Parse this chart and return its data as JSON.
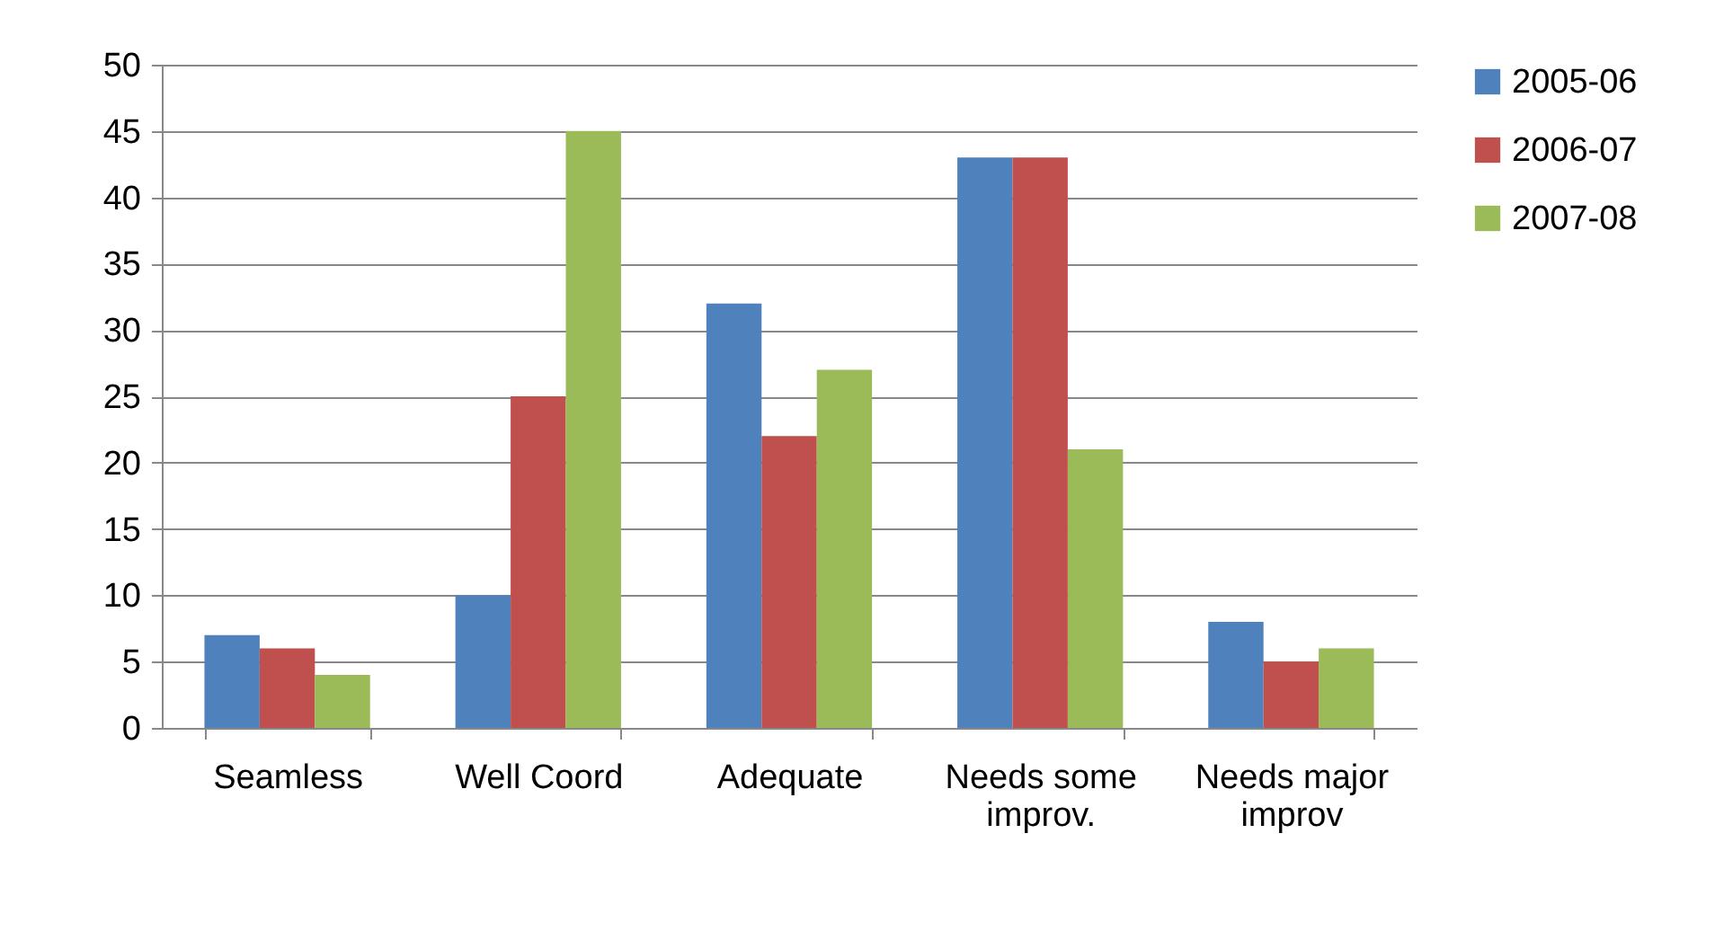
{
  "chart_data": {
    "type": "bar",
    "categories": [
      "Seamless",
      "Well Coord",
      "Adequate",
      "Needs some improv.",
      "Needs major improv"
    ],
    "series": [
      {
        "name": "2005-06",
        "color": "#4f81bd",
        "values": [
          7,
          10,
          32,
          43,
          8
        ]
      },
      {
        "name": "2006-07",
        "color": "#c0504d",
        "values": [
          6,
          25,
          22,
          43,
          5
        ]
      },
      {
        "name": "2007-08",
        "color": "#9bbb59",
        "values": [
          4,
          45,
          27,
          21,
          6
        ]
      }
    ],
    "ylim": [
      0,
      50
    ],
    "yticks": [
      0,
      5,
      10,
      15,
      20,
      25,
      30,
      35,
      40,
      45,
      50
    ],
    "grid": "y",
    "legend": "right"
  }
}
